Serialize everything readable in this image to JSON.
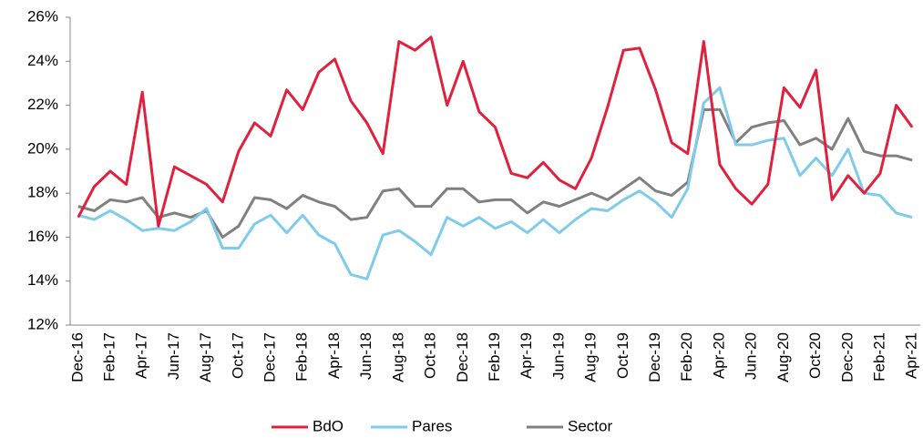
{
  "chart_data": {
    "type": "line",
    "categories": [
      "Dec-16",
      null,
      "Feb-17",
      null,
      "Apr-17",
      null,
      "Jun-17",
      null,
      "Aug-17",
      null,
      "Oct-17",
      null,
      "Dec-17",
      null,
      "Feb-18",
      null,
      "Apr-18",
      null,
      "Jun-18",
      null,
      "Aug-18",
      null,
      "Oct-18",
      null,
      "Dec-18",
      null,
      "Feb-19",
      null,
      "Apr-19",
      null,
      "Jun-19",
      null,
      "Aug-19",
      null,
      "Oct-19",
      null,
      "Dec-19",
      null,
      "Feb-20",
      null,
      "Apr-20",
      null,
      "Jun-20",
      null,
      "Aug-20",
      null,
      "Oct-20",
      null,
      "Dec-20",
      null,
      "Feb-21",
      null,
      "Apr-21"
    ],
    "series": [
      {
        "name": "BdO",
        "color": "#e0203c",
        "values": [
          16.9,
          18.3,
          19.0,
          18.4,
          22.6,
          16.5,
          19.2,
          18.8,
          18.4,
          17.6,
          19.9,
          21.2,
          20.6,
          22.7,
          21.8,
          23.5,
          24.1,
          22.2,
          21.2,
          19.8,
          24.9,
          24.5,
          25.1,
          22.0,
          24.0,
          21.7,
          21.0,
          18.9,
          18.7,
          19.4,
          18.6,
          18.2,
          19.6,
          21.9,
          24.5,
          24.6,
          22.7,
          20.3,
          19.8,
          24.9,
          19.3,
          18.2,
          17.5,
          18.4,
          22.8,
          21.9,
          23.6,
          17.7,
          18.8,
          18.0,
          18.9,
          22.0,
          21.0
        ]
      },
      {
        "name": "Pares",
        "color": "#7ecbeb",
        "values": [
          17.0,
          16.8,
          17.2,
          16.8,
          16.3,
          16.4,
          16.3,
          16.7,
          17.3,
          15.5,
          15.5,
          16.6,
          17.0,
          16.2,
          17.0,
          16.1,
          15.7,
          14.3,
          14.1,
          16.1,
          16.3,
          15.8,
          15.2,
          16.9,
          16.5,
          16.9,
          16.4,
          16.7,
          16.2,
          16.8,
          16.2,
          16.8,
          17.3,
          17.2,
          17.7,
          18.1,
          17.6,
          16.9,
          18.2,
          22.1,
          22.8,
          20.2,
          20.2,
          20.4,
          20.5,
          18.8,
          19.6,
          18.8,
          20.0,
          18.0,
          17.9,
          17.1,
          16.9
        ]
      },
      {
        "name": "Sector",
        "color": "#808080",
        "values": [
          17.4,
          17.2,
          17.7,
          17.6,
          17.8,
          16.9,
          17.1,
          16.9,
          17.2,
          16.0,
          16.5,
          17.8,
          17.7,
          17.3,
          17.9,
          17.6,
          17.4,
          16.8,
          16.9,
          18.1,
          18.2,
          17.4,
          17.4,
          18.2,
          18.2,
          17.6,
          17.7,
          17.7,
          17.1,
          17.6,
          17.4,
          17.7,
          18.0,
          17.7,
          18.2,
          18.7,
          18.1,
          17.9,
          18.5,
          21.8,
          21.8,
          20.3,
          21.0,
          21.2,
          21.3,
          20.2,
          20.5,
          20.0,
          21.4,
          19.9,
          19.7,
          19.7,
          19.5
        ]
      }
    ],
    "ylim": [
      12,
      26
    ],
    "yticks": [
      {
        "value": 12,
        "label": "12%"
      },
      {
        "value": 14,
        "label": "14%"
      },
      {
        "value": 16,
        "label": "16%"
      },
      {
        "value": 18,
        "label": "18%"
      },
      {
        "value": 20,
        "label": "20%"
      },
      {
        "value": 22,
        "label": "22%"
      },
      {
        "value": 24,
        "label": "24%"
      },
      {
        "value": 26,
        "label": "26%"
      }
    ],
    "grid": false,
    "legend": "bottom"
  }
}
